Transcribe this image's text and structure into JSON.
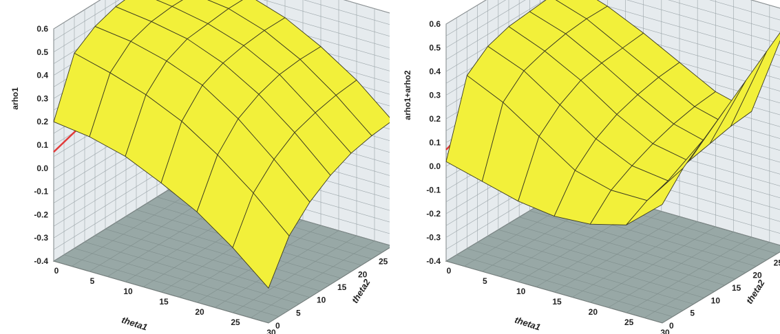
{
  "chart_data": [
    {
      "type": "surface3d",
      "zlabel": "arho1",
      "xlabel": "theta1",
      "ylabel": "theta2",
      "zlim": [
        -0.4,
        0.6
      ],
      "xlim": [
        0,
        30
      ],
      "ylim": [
        0,
        30
      ],
      "z_ticks": [
        "0.6",
        "0.5",
        "0.4",
        "0.3",
        "0.2",
        "0.1",
        "0.0",
        "-0.1",
        "-0.2",
        "-0.3",
        "-0.4"
      ],
      "x_ticks": [
        "0",
        "5",
        "10",
        "15",
        "20",
        "25",
        "30"
      ],
      "y_ticks": [
        "0",
        "5",
        "10",
        "15",
        "20",
        "25",
        "30"
      ],
      "surface_color": "#f2f03a",
      "floor_color": "#98a8a6",
      "wall_color": "#e6ebee",
      "reference_line_color": "#e23a3a",
      "theta1_values": [
        0,
        5,
        10,
        15,
        20,
        25,
        30
      ],
      "theta2_values": [
        0,
        5,
        10,
        15,
        20,
        25,
        30
      ],
      "z_grid": [
        [
          0.2,
          0.44,
          0.5,
          0.53,
          0.54,
          0.54,
          0.54
        ],
        [
          0.18,
          0.4,
          0.48,
          0.51,
          0.52,
          0.52,
          0.52
        ],
        [
          0.14,
          0.35,
          0.44,
          0.48,
          0.49,
          0.5,
          0.5
        ],
        [
          0.07,
          0.28,
          0.38,
          0.42,
          0.44,
          0.45,
          0.45
        ],
        [
          -0.01,
          0.18,
          0.28,
          0.33,
          0.36,
          0.37,
          0.37
        ],
        [
          -0.12,
          0.06,
          0.15,
          0.21,
          0.24,
          0.26,
          0.27
        ],
        [
          -0.25,
          -0.08,
          0.01,
          0.07,
          0.11,
          0.13,
          0.14
        ]
      ],
      "reference_line": [
        [
          0,
          0.07
        ],
        [
          30,
          0.25
        ],
        [
          30,
          0.18
        ]
      ]
    },
    {
      "type": "surface3d",
      "zlabel": "arho1+arho2",
      "xlabel": "theta1",
      "ylabel": "theta2",
      "zlim": [
        -0.4,
        0.6
      ],
      "xlim": [
        0,
        30
      ],
      "ylim": [
        0,
        30
      ],
      "z_ticks": [
        "0.6",
        "0.5",
        "0.4",
        "0.3",
        "0.2",
        "0.1",
        "0.0",
        "-0.1",
        "-0.2",
        "-0.3",
        "-0.4"
      ],
      "x_ticks": [
        "0",
        "5",
        "10",
        "15",
        "20",
        "25",
        "30"
      ],
      "y_ticks": [
        "0",
        "5",
        "10",
        "15",
        "20",
        "25",
        "30"
      ],
      "surface_color": "#f2f03a",
      "floor_color": "#98a8a6",
      "wall_color": "#e6ebee",
      "reference_line_color": "#e23a3a",
      "theta1_values": [
        0,
        5,
        10,
        15,
        20,
        25,
        30
      ],
      "theta2_values": [
        0,
        5,
        10,
        15,
        20,
        25,
        30
      ],
      "z_grid": [
        [
          0.02,
          0.33,
          0.4,
          0.43,
          0.44,
          0.45,
          0.45
        ],
        [
          -0.02,
          0.26,
          0.34,
          0.37,
          0.39,
          0.4,
          0.4
        ],
        [
          -0.06,
          0.16,
          0.24,
          0.29,
          0.31,
          0.32,
          0.33
        ],
        [
          -0.08,
          0.06,
          0.14,
          0.19,
          0.22,
          0.24,
          0.25
        ],
        [
          -0.07,
          0.02,
          0.07,
          0.11,
          0.14,
          0.16,
          0.17
        ],
        [
          -0.03,
          0.02,
          0.05,
          0.08,
          0.1,
          0.12,
          0.13
        ],
        [
          0.1,
          0.2,
          0.27,
          0.34,
          0.41,
          0.48,
          0.55
        ]
      ],
      "reference_line": [
        [
          0,
          0.07
        ],
        [
          15,
          0.18
        ]
      ]
    }
  ]
}
